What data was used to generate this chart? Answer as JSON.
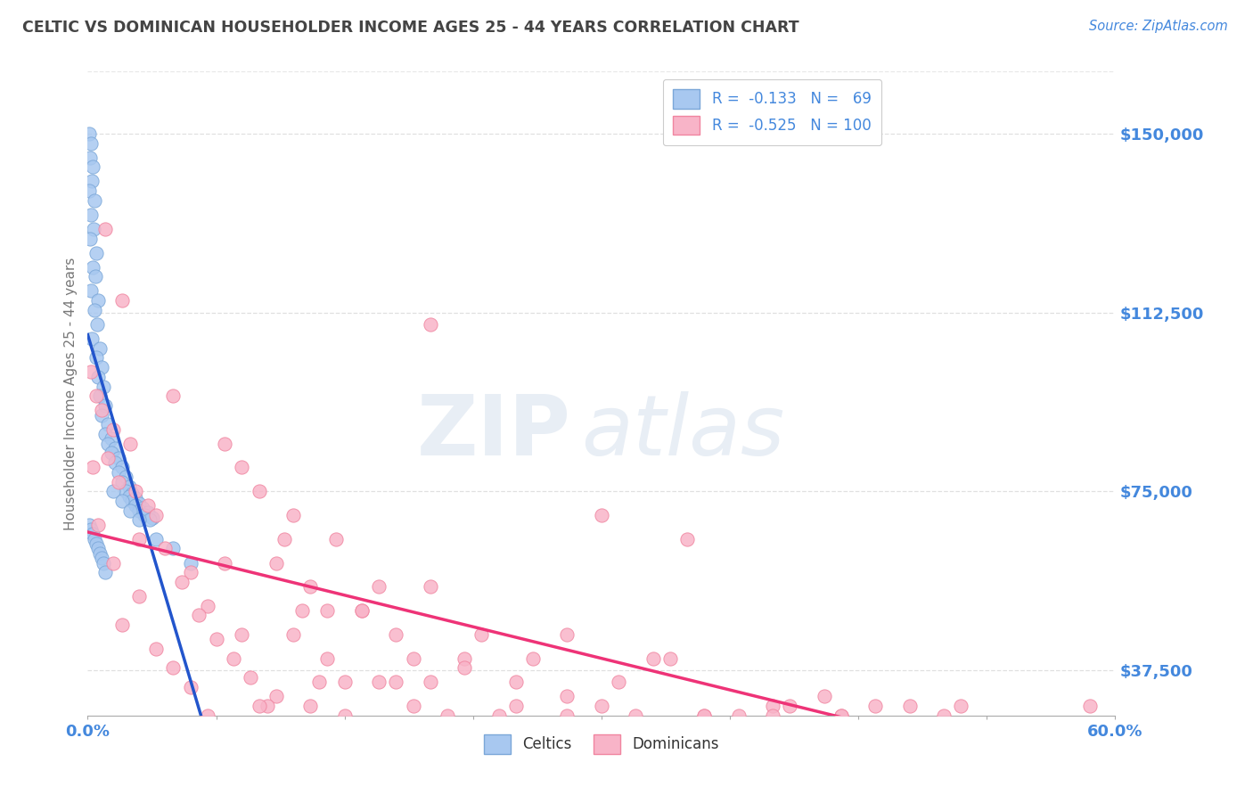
{
  "title": "CELTIC VS DOMINICAN HOUSEHOLDER INCOME AGES 25 - 44 YEARS CORRELATION CHART",
  "source_text": "Source: ZipAtlas.com",
  "ylabel": "Householder Income Ages 25 - 44 years",
  "xlim": [
    0.0,
    60.0
  ],
  "ylim": [
    28000,
    163000
  ],
  "yticks": [
    37500,
    75000,
    112500,
    150000
  ],
  "ytick_labels": [
    "$37,500",
    "$75,000",
    "$112,500",
    "$150,000"
  ],
  "xtick_positions": [
    0,
    7.5,
    15,
    22.5,
    30,
    37.5,
    45,
    52.5,
    60
  ],
  "celtic_color": "#A8C8F0",
  "dominican_color": "#F8B4C8",
  "celtic_edge": "#7BA7D8",
  "dominican_edge": "#F085A0",
  "regression_celtic_color": "#2255CC",
  "regression_dominican_color": "#EE3377",
  "dashed_line_color": "#BBBBBB",
  "legend_R_celtic": "-0.133",
  "legend_N_celtic": "69",
  "legend_R_dominican": "-0.525",
  "legend_N_dominican": "100",
  "text_color": "#4488DD",
  "title_color": "#444444",
  "background_color": "#FFFFFF",
  "grid_color": "#DDDDDD",
  "celtic_x": [
    0.1,
    0.2,
    0.15,
    0.3,
    0.25,
    0.1,
    0.4,
    0.2,
    0.35,
    0.15,
    0.5,
    0.3,
    0.45,
    0.2,
    0.6,
    0.4,
    0.55,
    0.25,
    0.7,
    0.5,
    0.8,
    0.6,
    0.9,
    0.7,
    1.0,
    0.8,
    1.2,
    1.0,
    1.4,
    1.2,
    1.6,
    1.4,
    1.8,
    1.6,
    2.0,
    1.8,
    2.2,
    2.0,
    2.4,
    2.2,
    2.6,
    2.4,
    2.8,
    2.6,
    3.0,
    2.8,
    3.2,
    3.0,
    3.5,
    3.3,
    3.8,
    3.6,
    0.1,
    0.2,
    0.3,
    0.4,
    0.5,
    0.6,
    0.7,
    0.8,
    0.9,
    1.0,
    1.5,
    2.0,
    2.5,
    3.0,
    4.0,
    5.0,
    6.0
  ],
  "celtic_y": [
    150000,
    148000,
    145000,
    143000,
    140000,
    138000,
    136000,
    133000,
    130000,
    128000,
    125000,
    122000,
    120000,
    117000,
    115000,
    113000,
    110000,
    107000,
    105000,
    103000,
    101000,
    99000,
    97000,
    95000,
    93000,
    91000,
    89000,
    87000,
    86000,
    85000,
    84000,
    83000,
    82000,
    81000,
    80000,
    79000,
    78000,
    77000,
    76000,
    75000,
    74500,
    74000,
    73500,
    73000,
    72500,
    72000,
    71500,
    71000,
    70500,
    70000,
    69500,
    69000,
    68000,
    67000,
    66000,
    65000,
    64000,
    63000,
    62000,
    61000,
    60000,
    58000,
    75000,
    73000,
    71000,
    69000,
    65000,
    63000,
    60000
  ],
  "dominican_x": [
    0.2,
    0.5,
    0.8,
    1.0,
    1.5,
    2.0,
    2.5,
    0.3,
    1.2,
    1.8,
    2.8,
    3.5,
    0.6,
    4.0,
    3.0,
    5.0,
    4.5,
    1.5,
    6.0,
    5.5,
    3.0,
    7.0,
    6.5,
    2.0,
    8.0,
    7.5,
    4.0,
    9.0,
    8.5,
    5.0,
    10.0,
    9.5,
    6.0,
    11.0,
    10.5,
    7.0,
    12.0,
    11.5,
    8.0,
    13.0,
    12.5,
    9.0,
    14.0,
    13.5,
    10.0,
    15.0,
    14.5,
    11.0,
    17.0,
    16.0,
    12.0,
    19.0,
    18.0,
    13.0,
    21.0,
    20.0,
    14.0,
    23.0,
    22.0,
    15.0,
    25.0,
    24.0,
    16.0,
    28.0,
    26.0,
    17.0,
    30.0,
    28.0,
    18.0,
    33.0,
    31.0,
    19.0,
    36.0,
    34.0,
    20.0,
    40.0,
    38.0,
    22.0,
    43.0,
    41.0,
    25.0,
    46.0,
    44.0,
    28.0,
    50.0,
    48.0,
    32.0,
    53.0,
    51.0,
    36.0,
    56.0,
    54.0,
    40.0,
    58.0,
    56.0,
    44.0,
    30.0,
    35.0,
    20.0,
    58.5
  ],
  "dominican_y": [
    100000,
    95000,
    92000,
    130000,
    88000,
    115000,
    85000,
    80000,
    82000,
    77000,
    75000,
    72000,
    68000,
    70000,
    65000,
    95000,
    63000,
    60000,
    58000,
    56000,
    53000,
    51000,
    49000,
    47000,
    85000,
    44000,
    42000,
    80000,
    40000,
    38000,
    75000,
    36000,
    34000,
    32000,
    30000,
    28000,
    70000,
    65000,
    60000,
    55000,
    50000,
    45000,
    40000,
    35000,
    30000,
    28000,
    65000,
    60000,
    55000,
    50000,
    45000,
    40000,
    35000,
    30000,
    28000,
    55000,
    50000,
    45000,
    40000,
    35000,
    30000,
    28000,
    50000,
    45000,
    40000,
    35000,
    30000,
    28000,
    45000,
    40000,
    35000,
    30000,
    28000,
    40000,
    35000,
    30000,
    28000,
    38000,
    32000,
    30000,
    35000,
    30000,
    28000,
    32000,
    28000,
    30000,
    28000,
    25000,
    30000,
    28000,
    26000,
    25000,
    28000,
    26000,
    25000,
    28000,
    70000,
    65000,
    110000,
    30000
  ]
}
